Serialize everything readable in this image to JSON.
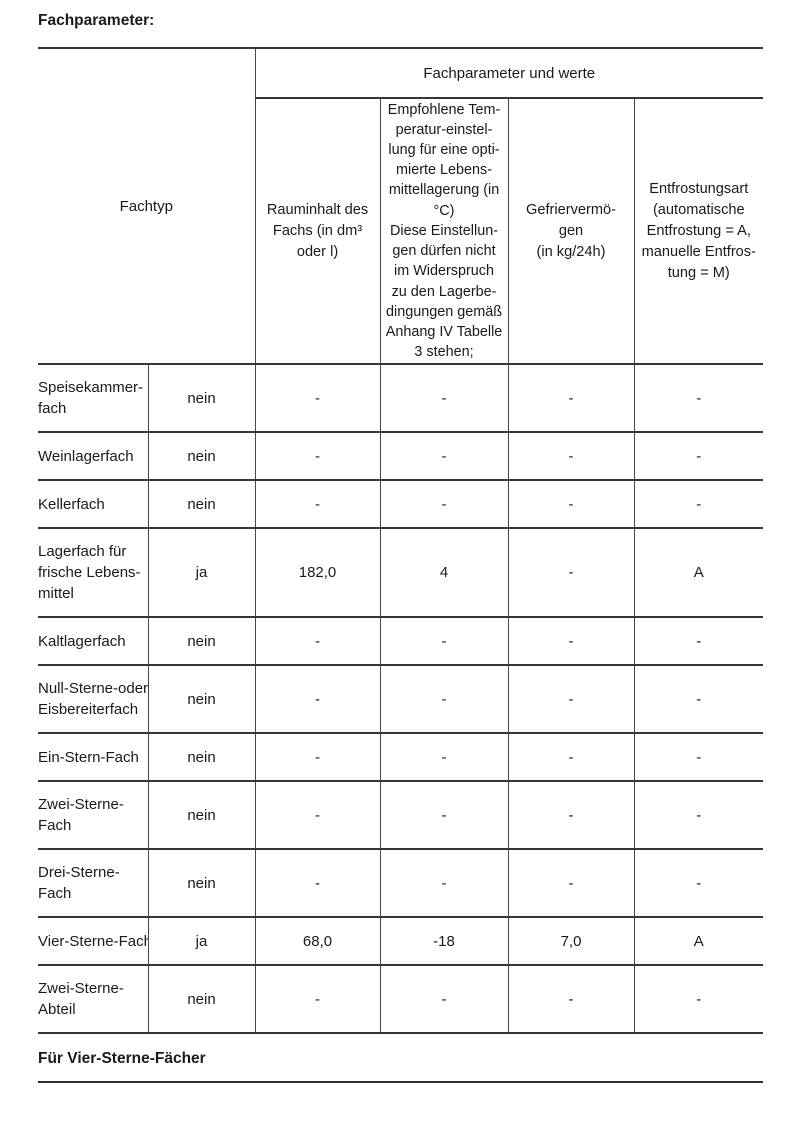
{
  "page": {
    "title": "Fachparameter:",
    "section_heading": "Für Vier-Sterne-Fächer"
  },
  "table": {
    "corner_header": "Fachtyp",
    "group_header": "Fachparameter und werte",
    "column_headers": [
      "Rauminhalt des\nFachs (in dm³\noder l)",
      "Empfohlene Tem-\nperatur-einstel-\nlung für eine opti-\nmierte Lebens-\nmittellagerung (in\n°C)\nDiese Einstellun-\ngen dürfen nicht\nim Widerspruch\nzu den Lagerbe-\ndingungen gemäß\nAnhang IV Tabelle\n3 stehen;",
      "Gefriervermö-\ngen\n(in kg/24h)",
      "Entfrostungsart\n(automatische\nEntfrostung = A,\nmanuelle Entfros-\ntung = M)"
    ],
    "rows": [
      {
        "name": "Speisekammer-\nfach",
        "present": "nein",
        "values": [
          "-",
          "-",
          "-",
          "-"
        ]
      },
      {
        "name": "Weinlagerfach",
        "present": "nein",
        "values": [
          "-",
          "-",
          "-",
          "-"
        ]
      },
      {
        "name": "Kellerfach",
        "present": "nein",
        "values": [
          "-",
          "-",
          "-",
          "-"
        ]
      },
      {
        "name": "Lagerfach für\nfrische Lebens-\nmittel",
        "present": "ja",
        "values": [
          "182,0",
          "4",
          "-",
          "A"
        ]
      },
      {
        "name": "Kaltlagerfach",
        "present": "nein",
        "values": [
          "-",
          "-",
          "-",
          "-"
        ]
      },
      {
        "name": "Null-Sterne-oder\nEisbereiterfach",
        "present": "nein",
        "values": [
          "-",
          "-",
          "-",
          "-"
        ]
      },
      {
        "name": "Ein-Stern-Fach",
        "present": "nein",
        "values": [
          "-",
          "-",
          "-",
          "-"
        ]
      },
      {
        "name": "Zwei-Sterne-\nFach",
        "present": "nein",
        "values": [
          "-",
          "-",
          "-",
          "-"
        ]
      },
      {
        "name": "Drei-Sterne-\nFach",
        "present": "nein",
        "values": [
          "-",
          "-",
          "-",
          "-"
        ]
      },
      {
        "name": "Vier-Sterne-Fach",
        "present": "ja",
        "values": [
          "68,0",
          "-18",
          "7,0",
          "A"
        ]
      },
      {
        "name": "Zwei-Sterne-\nAbteil",
        "present": "nein",
        "values": [
          "-",
          "-",
          "-",
          "-"
        ]
      }
    ]
  }
}
